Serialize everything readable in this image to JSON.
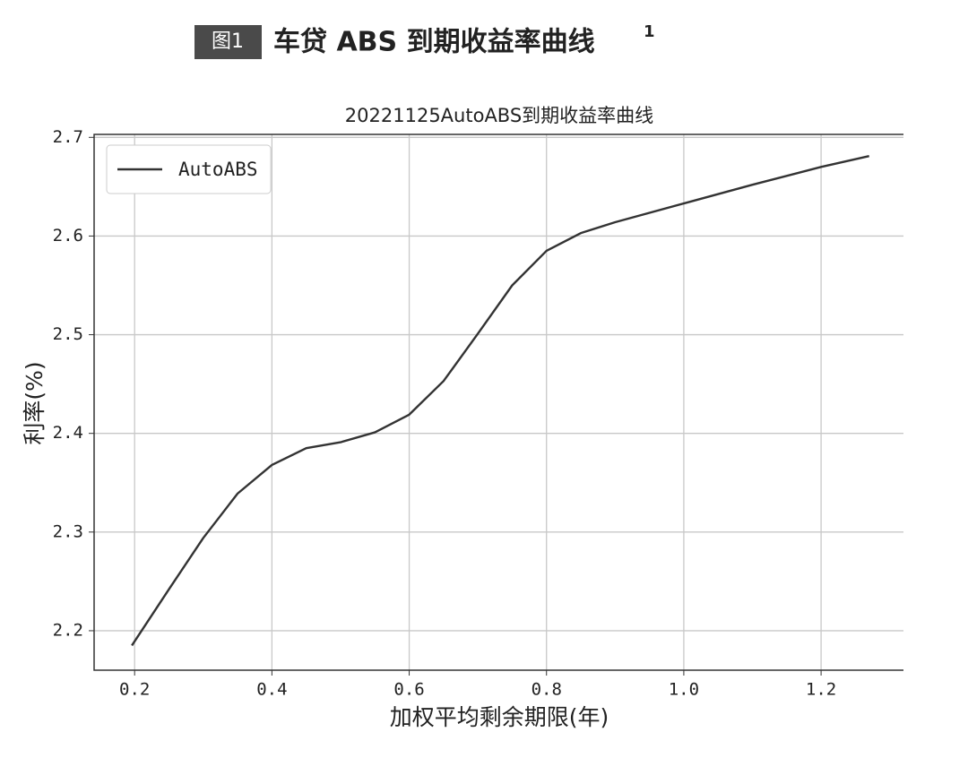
{
  "figure": {
    "label": "图1",
    "title": "车贷 ABS 到期收益率曲线",
    "footnote": "1"
  },
  "chart_data": {
    "type": "line",
    "title": "20221125AutoABS到期收益率曲线",
    "x_label": "加权平均剩余期限(年)",
    "y_label": "利率(%)",
    "x": [
      0.196,
      0.25,
      0.3,
      0.35,
      0.4,
      0.45,
      0.5,
      0.55,
      0.6,
      0.65,
      0.7,
      0.75,
      0.8,
      0.85,
      0.9,
      1.0,
      1.1,
      1.2,
      1.27
    ],
    "series": [
      {
        "name": "AutoABS",
        "color": "#333333",
        "values": [
          2.185,
          2.242,
          2.294,
          2.339,
          2.368,
          2.385,
          2.391,
          2.401,
          2.419,
          2.453,
          2.501,
          2.55,
          2.585,
          2.603,
          2.614,
          2.633,
          2.652,
          2.67,
          2.681
        ]
      }
    ],
    "xlim": [
      0.141,
      1.32
    ],
    "ylim": [
      2.16,
      2.703
    ],
    "xticks": [
      0.2,
      0.4,
      0.6,
      0.8,
      {
        "value": 1,
        "label": "1.0"
      },
      1.2
    ],
    "yticks": [
      2.2,
      2.3,
      2.4,
      2.5,
      2.6,
      2.7
    ],
    "grid": true,
    "legend": "upper left"
  }
}
